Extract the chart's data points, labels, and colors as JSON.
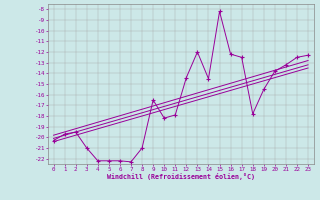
{
  "xlabel": "Windchill (Refroidissement éolien,°C)",
  "background_color": "#cce8e8",
  "line_color": "#990099",
  "xlim": [
    -0.5,
    23.5
  ],
  "ylim": [
    -22.5,
    -7.5
  ],
  "yticks": [
    -8,
    -9,
    -10,
    -11,
    -12,
    -13,
    -14,
    -15,
    -16,
    -17,
    -18,
    -19,
    -20,
    -21,
    -22
  ],
  "xticks": [
    0,
    1,
    2,
    3,
    4,
    5,
    6,
    7,
    8,
    9,
    10,
    11,
    12,
    13,
    14,
    15,
    16,
    17,
    18,
    19,
    20,
    21,
    22,
    23
  ],
  "main_series": {
    "x": [
      0,
      1,
      2,
      3,
      4,
      5,
      6,
      7,
      8,
      9,
      10,
      11,
      12,
      13,
      14,
      15,
      16,
      17,
      18,
      19,
      20,
      21,
      22,
      23
    ],
    "y": [
      -20.3,
      -19.7,
      -19.5,
      -21.0,
      -22.2,
      -22.2,
      -22.2,
      -22.3,
      -21.0,
      -16.5,
      -18.2,
      -17.9,
      -14.4,
      -12.0,
      -14.5,
      -8.2,
      -12.2,
      -12.5,
      -17.8,
      -15.5,
      -13.8,
      -13.2,
      -12.5,
      -12.3
    ]
  },
  "reg_lines": [
    {
      "x": [
        0,
        23
      ],
      "y": [
        -19.8,
        -12.8
      ]
    },
    {
      "x": [
        0,
        23
      ],
      "y": [
        -20.1,
        -13.2
      ]
    },
    {
      "x": [
        0,
        23
      ],
      "y": [
        -20.4,
        -13.5
      ]
    }
  ]
}
